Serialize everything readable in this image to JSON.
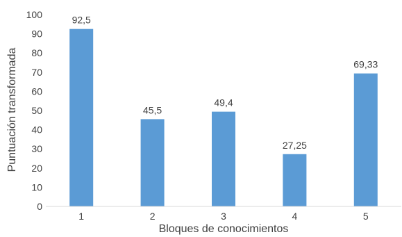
{
  "chart_data": {
    "type": "bar",
    "title": "",
    "xlabel": "Bloques de conocimientos",
    "ylabel": "Puntuación transformada",
    "categories": [
      "1",
      "2",
      "3",
      "4",
      "5"
    ],
    "values": [
      92.5,
      45.5,
      49.4,
      27.25,
      69.33
    ],
    "data_labels": [
      "92,5",
      "45,5",
      "49,4",
      "27,25",
      "69,33"
    ],
    "yticks": [
      "0",
      "10",
      "20",
      "30",
      "40",
      "50",
      "60",
      "70",
      "80",
      "90",
      "100"
    ],
    "ylim": [
      0,
      100
    ],
    "grid": false,
    "legend": "none",
    "bar_color": "#5b9bd5"
  }
}
